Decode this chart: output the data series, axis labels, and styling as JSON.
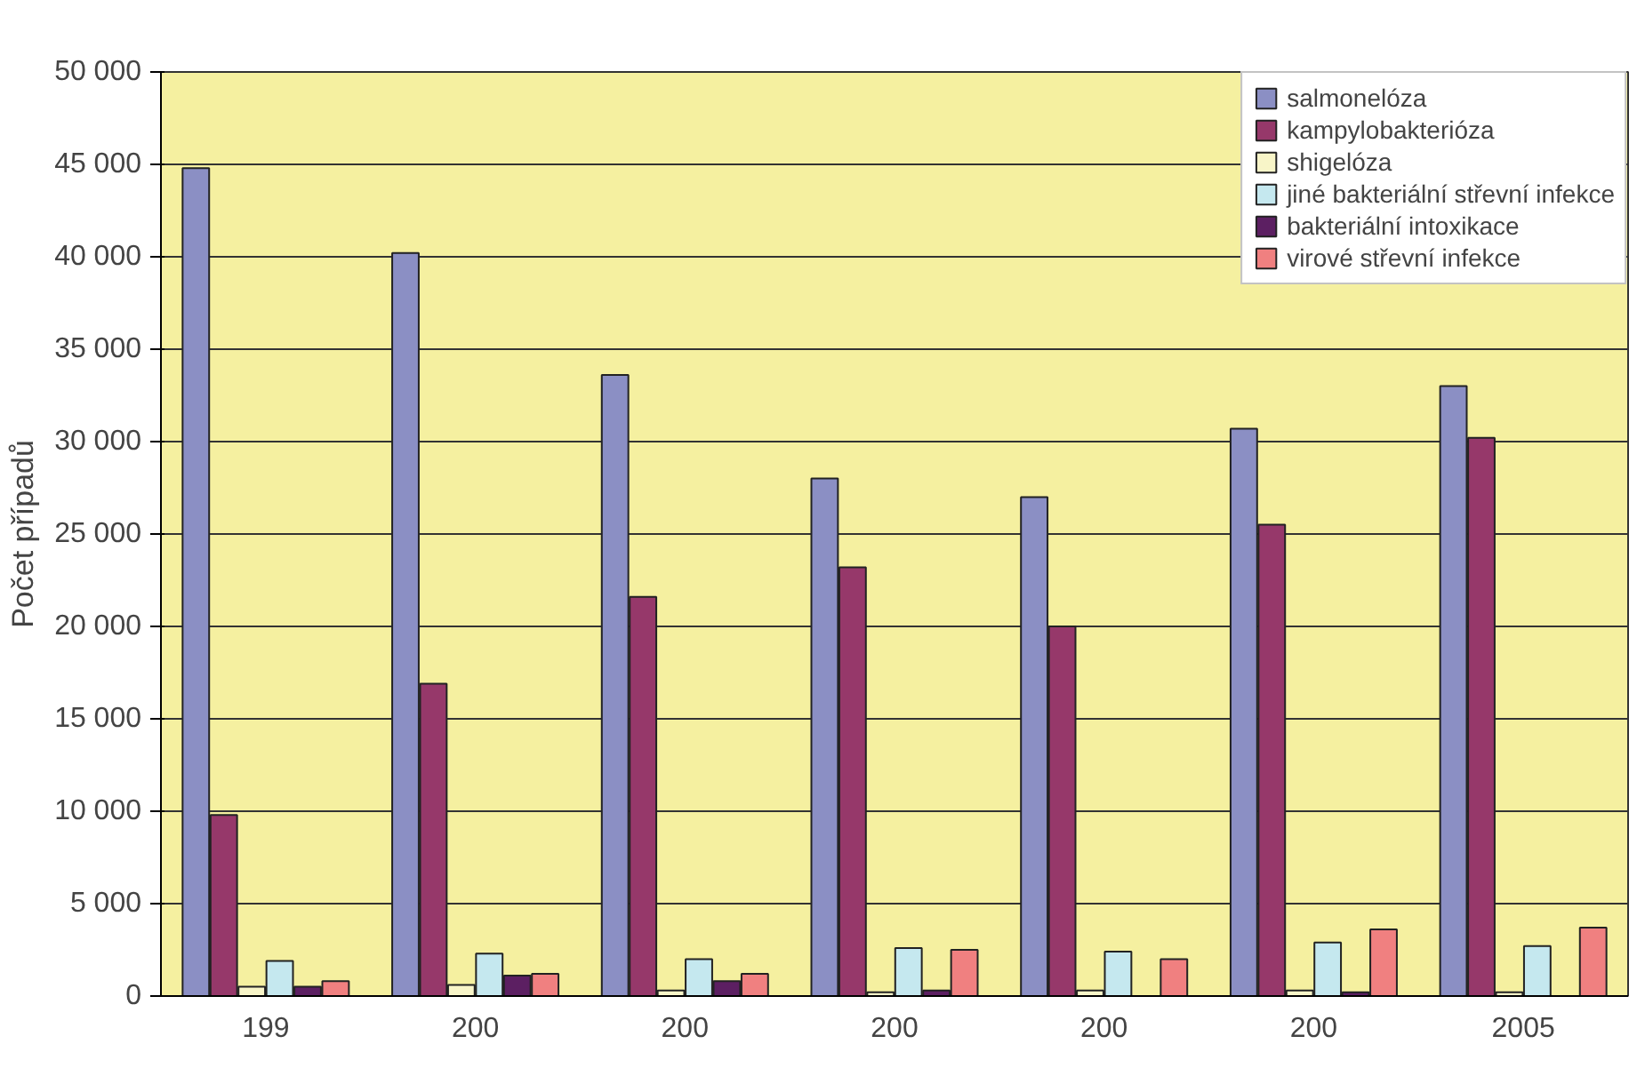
{
  "chart_data": {
    "type": "bar",
    "ylabel": "Počet případů",
    "categories": [
      "199",
      "200",
      "200",
      "200",
      "200",
      "200",
      "2005"
    ],
    "series": [
      {
        "name": "salmonelóza",
        "color": "#8b8fc4",
        "values": [
          44800,
          40200,
          33600,
          28000,
          27000,
          30700,
          33000
        ]
      },
      {
        "name": "kampylobakterióza",
        "color": "#96386a",
        "values": [
          9800,
          16900,
          21600,
          23200,
          20000,
          25500,
          30200
        ]
      },
      {
        "name": "shigelóza",
        "color": "#f8f5c8",
        "values": [
          500,
          600,
          300,
          200,
          300,
          300,
          200
        ]
      },
      {
        "name": "jiné bakteriální střevní infekce",
        "color": "#c5e8ef",
        "values": [
          1900,
          2300,
          2000,
          2600,
          2400,
          2900,
          2700
        ]
      },
      {
        "name": "bakteriální intoxikace",
        "color": "#5c1f62",
        "values": [
          500,
          1100,
          800,
          300,
          null,
          200,
          null
        ]
      },
      {
        "name": "virové střevní infekce",
        "color": "#f08080",
        "values": [
          800,
          1200,
          1200,
          2500,
          2000,
          3600,
          3700
        ]
      }
    ],
    "ylim": [
      0,
      50000
    ],
    "yticks": [
      {
        "value": 0,
        "label": "0"
      },
      {
        "value": 5000,
        "label": "5 000"
      },
      {
        "value": 10000,
        "label": "10 000"
      },
      {
        "value": 15000,
        "label": "15 000"
      },
      {
        "value": 20000,
        "label": "20 000"
      },
      {
        "value": 25000,
        "label": "25 000"
      },
      {
        "value": 30000,
        "label": "30 000"
      },
      {
        "value": 35000,
        "label": "35 000"
      },
      {
        "value": 40000,
        "label": "40 000"
      },
      {
        "value": 45000,
        "label": "45 000"
      },
      {
        "value": 50000,
        "label": "50 000"
      }
    ],
    "grid": "y",
    "legend": "top right"
  }
}
